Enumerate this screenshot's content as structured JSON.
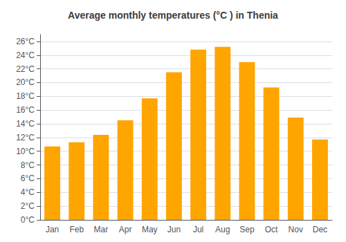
{
  "chart_data": {
    "type": "bar",
    "title": "Average monthly temperatures (°C ) in Thenia",
    "categories": [
      "Jan",
      "Feb",
      "Mar",
      "Apr",
      "May",
      "Jun",
      "Jul",
      "Aug",
      "Sep",
      "Oct",
      "Nov",
      "Dec"
    ],
    "values": [
      10.7,
      11.3,
      12.4,
      14.5,
      17.7,
      21.5,
      24.8,
      25.2,
      23.0,
      19.3,
      14.9,
      11.7
    ],
    "color": "#FFA500",
    "ylim": [
      0,
      27
    ],
    "yticks": [
      {
        "value": 0,
        "label": "0°C"
      },
      {
        "value": 2,
        "label": "2°C"
      },
      {
        "value": 4,
        "label": "4°C"
      },
      {
        "value": 6,
        "label": "6°C"
      },
      {
        "value": 8,
        "label": "8°C"
      },
      {
        "value": 10,
        "label": "10°C"
      },
      {
        "value": 12,
        "label": "12°C"
      },
      {
        "value": 14,
        "label": "14°C"
      },
      {
        "value": 16,
        "label": "16°C"
      },
      {
        "value": 18,
        "label": "18°C"
      },
      {
        "value": 20,
        "label": "20°C"
      },
      {
        "value": 22,
        "label": "22°C"
      },
      {
        "value": 24,
        "label": "24°C"
      },
      {
        "value": 26,
        "label": "26°C"
      }
    ],
    "grid": true
  }
}
